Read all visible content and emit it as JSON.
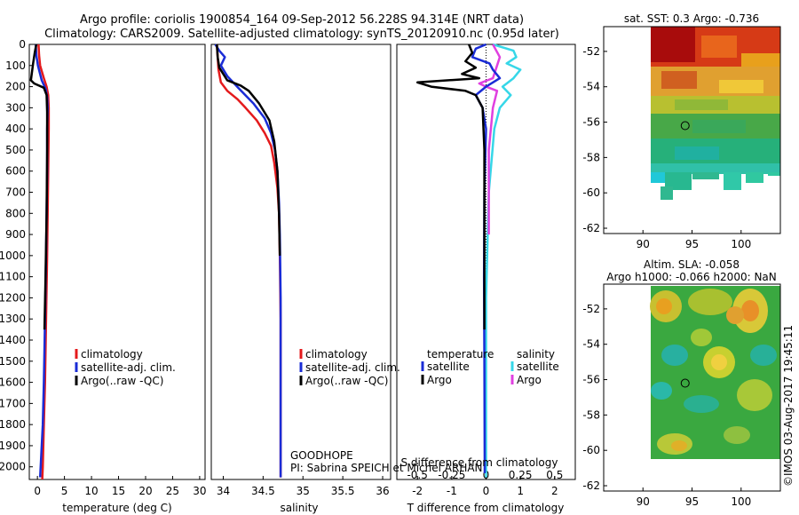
{
  "header": {
    "title_line1": "Argo profile: coriolis 1900854_164 09-Sep-2012 56.228S 94.314E (NRT data)",
    "title_line2": "Climatology: CARS2009. Satellite-adjusted climatology: synTS_20120910.nc (0.95d later)"
  },
  "colors": {
    "climatology": "#e41a1c",
    "satellite": "#1a2cd6",
    "argo": "#000000",
    "salinity_sat": "#36d7e8",
    "salinity_argo": "#e040e0"
  },
  "chart_data": [
    {
      "type": "line",
      "panel": "temperature",
      "xlabel": "temperature (deg C)",
      "ylabel": "",
      "xlim": [
        -1.5,
        31
      ],
      "ylim": [
        2060,
        0
      ],
      "xticks": [
        "0",
        "5",
        "10",
        "15",
        "20",
        "25",
        "30"
      ],
      "yticks": [
        "0",
        "100",
        "200",
        "300",
        "400",
        "500",
        "600",
        "700",
        "800",
        "900",
        "1000",
        "1100",
        "1200",
        "1300",
        "1400",
        "1500",
        "1600",
        "1700",
        "1800",
        "1900",
        "2000"
      ],
      "series": [
        {
          "name": "climatology",
          "x": [
            0.2,
            0.3,
            0.5,
            1.2,
            1.7,
            2.0,
            2.1,
            2.1,
            2.0,
            1.9,
            1.8,
            1.6,
            1.4,
            1.2,
            1.0,
            0.9
          ],
          "y": [
            0,
            50,
            100,
            160,
            200,
            240,
            300,
            400,
            600,
            800,
            1000,
            1300,
            1600,
            1800,
            2000,
            2060
          ]
        },
        {
          "name": "satellite-adj. clim.",
          "x": [
            -0.3,
            -0.2,
            0.1,
            0.8,
            1.5,
            1.8,
            1.9,
            1.8,
            1.8,
            1.7,
            1.6,
            1.4,
            1.2,
            1.0,
            0.6,
            0.5
          ],
          "y": [
            0,
            50,
            100,
            170,
            210,
            250,
            300,
            400,
            600,
            800,
            1000,
            1300,
            1600,
            1800,
            2000,
            2050
          ]
        },
        {
          "name": "Argo(..raw -QC)",
          "x": [
            -0.2,
            -0.5,
            -0.8,
            -1.2,
            -0.6,
            1.2,
            1.7,
            1.8,
            1.8,
            1.7,
            1.5,
            1.3
          ],
          "y": [
            0,
            40,
            90,
            170,
            185,
            205,
            240,
            320,
            500,
            800,
            1100,
            1350
          ]
        }
      ],
      "legend": [
        "climatology",
        "satellite-adj. clim.",
        "Argo(..raw -QC)"
      ]
    },
    {
      "type": "line",
      "panel": "salinity",
      "xlabel": "salinity",
      "xlim": [
        33.85,
        36.1
      ],
      "ylim": [
        2060,
        0
      ],
      "xticks": [
        "34",
        "34.5",
        "35",
        "35.5",
        "36"
      ],
      "series": [
        {
          "name": "climatology",
          "x": [
            33.92,
            33.93,
            33.94,
            33.97,
            34.05,
            34.18,
            34.28,
            34.42,
            34.52,
            34.6,
            34.64,
            34.68,
            34.7,
            34.71,
            34.72,
            34.72,
            34.72
          ],
          "y": [
            0,
            60,
            120,
            180,
            220,
            260,
            300,
            360,
            420,
            480,
            560,
            680,
            800,
            1000,
            1300,
            1700,
            2050
          ]
        },
        {
          "name": "satellite-adj. clim.",
          "x": [
            33.9,
            33.95,
            34.02,
            33.97,
            34.05,
            34.2,
            34.38,
            34.52,
            34.6,
            34.65,
            34.68,
            34.7,
            34.71,
            34.72,
            34.72,
            34.72
          ],
          "y": [
            0,
            30,
            60,
            100,
            150,
            210,
            280,
            350,
            420,
            500,
            600,
            750,
            900,
            1200,
            1600,
            2050
          ]
        },
        {
          "name": "Argo(..raw -QC)",
          "x": [
            33.92,
            33.93,
            33.95,
            34.05,
            34.22,
            34.32,
            34.45,
            34.58,
            34.64,
            34.68,
            34.7,
            34.71
          ],
          "y": [
            0,
            60,
            110,
            170,
            195,
            220,
            280,
            360,
            460,
            600,
            800,
            1000
          ]
        }
      ],
      "legend": [
        "climatology",
        "satellite-adj. clim.",
        "Argo(..raw -QC)"
      ],
      "annotation_line1": "GOODHOPE",
      "annotation_line2": "PI: Sabrina SPEICH et Michel ARHAN"
    },
    {
      "type": "line",
      "panel": "difference",
      "xlabel": "T difference from climatology",
      "xlabel_top": "S difference from climatology",
      "xlim": [
        -2.6,
        2.6
      ],
      "ylim": [
        2060,
        0
      ],
      "xticks": [
        "-2",
        "-1",
        "0",
        "1",
        "2"
      ],
      "top_ticks": [
        "-0.5",
        "-0.25",
        "0",
        "0.25",
        "0.5"
      ],
      "series": [
        {
          "name": "temperature satellite",
          "x": [
            0.0,
            -0.3,
            -0.4,
            0.1,
            0.2,
            0.4,
            0.0,
            -0.3,
            -0.1,
            0.0,
            -0.05,
            -0.06,
            -0.05,
            -0.04
          ],
          "y": [
            0,
            20,
            60,
            90,
            120,
            160,
            200,
            240,
            300,
            400,
            700,
            1100,
            1500,
            2030
          ]
        },
        {
          "name": "temperature Argo",
          "x": [
            -0.5,
            -0.4,
            -0.6,
            -0.3,
            -0.7,
            -0.2,
            -2.0,
            -1.6,
            -0.6,
            -0.3,
            -0.1,
            -0.05,
            -0.05,
            -0.05
          ],
          "y": [
            0,
            40,
            80,
            110,
            140,
            160,
            180,
            200,
            220,
            240,
            300,
            500,
            900,
            1350
          ]
        },
        {
          "name": "salinity satellite",
          "x": [
            0.05,
            0.2,
            0.22,
            0.15,
            0.25,
            0.2,
            0.12,
            0.18,
            0.1,
            0.06,
            0.02,
            0.0,
            0.0
          ],
          "y": [
            0,
            30,
            60,
            90,
            120,
            160,
            200,
            240,
            300,
            400,
            700,
            1200,
            2050
          ]
        },
        {
          "name": "salinity Argo",
          "x": [
            0.05,
            0.1,
            0.08,
            0.05,
            -0.05,
            0.0,
            0.08,
            0.05,
            0.02,
            0.02
          ],
          "y": [
            0,
            60,
            100,
            160,
            185,
            200,
            220,
            300,
            500,
            900
          ]
        }
      ],
      "legend_temperature_title": "temperature",
      "legend_salinity_title": "salinity",
      "legend": [
        "satellite",
        "Argo",
        "satellite",
        "Argo"
      ]
    },
    {
      "type": "heatmap",
      "panel": "sst",
      "title": "sat. SST: 0.3 Argo: -0.736",
      "xlim": [
        86,
        104
      ],
      "ylim": [
        -62.3,
        -50.6
      ],
      "xticks": [
        "90",
        "95",
        "100"
      ],
      "yticks": [
        "-52",
        "-54",
        "-56",
        "-58",
        "-60",
        "-62"
      ],
      "marker": {
        "lon": 94.3,
        "lat": -56.2
      }
    },
    {
      "type": "heatmap",
      "panel": "sla",
      "title_line1": "Altim. SLA: -0.058",
      "title_line2": "Argo h1000: -0.066 h2000: NaN",
      "xlim": [
        86,
        104
      ],
      "ylim": [
        -62.3,
        -50.6
      ],
      "xticks": [
        "90",
        "95",
        "100"
      ],
      "yticks": [
        "-52",
        "-54",
        "-56",
        "-58",
        "-60",
        "-62"
      ],
      "marker": {
        "lon": 94.3,
        "lat": -56.2
      }
    }
  ],
  "footer": {
    "imos_stamp": "©IMOS 03-Aug-2017 19:45:11"
  }
}
